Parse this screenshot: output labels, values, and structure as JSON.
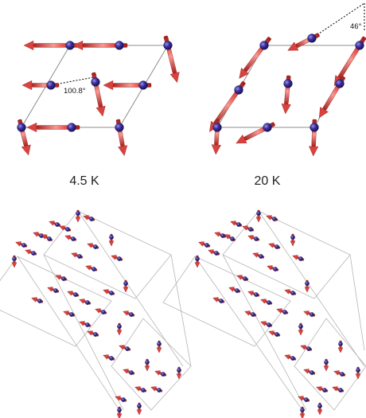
{
  "panels": {
    "low_t": {
      "temperature": "4.5 K",
      "angle_label": "100.8°"
    },
    "high_t": {
      "temperature": "20 K",
      "angle_label": "46°"
    }
  },
  "colors": {
    "arrow_body": "#d9433f",
    "arrow_highlight": "#f59a93",
    "arrow_edge": "#9a1e1c",
    "atom": "#2b2280",
    "atom_highlight": "#8f86e0",
    "cell_line": "#8c8c8c"
  }
}
